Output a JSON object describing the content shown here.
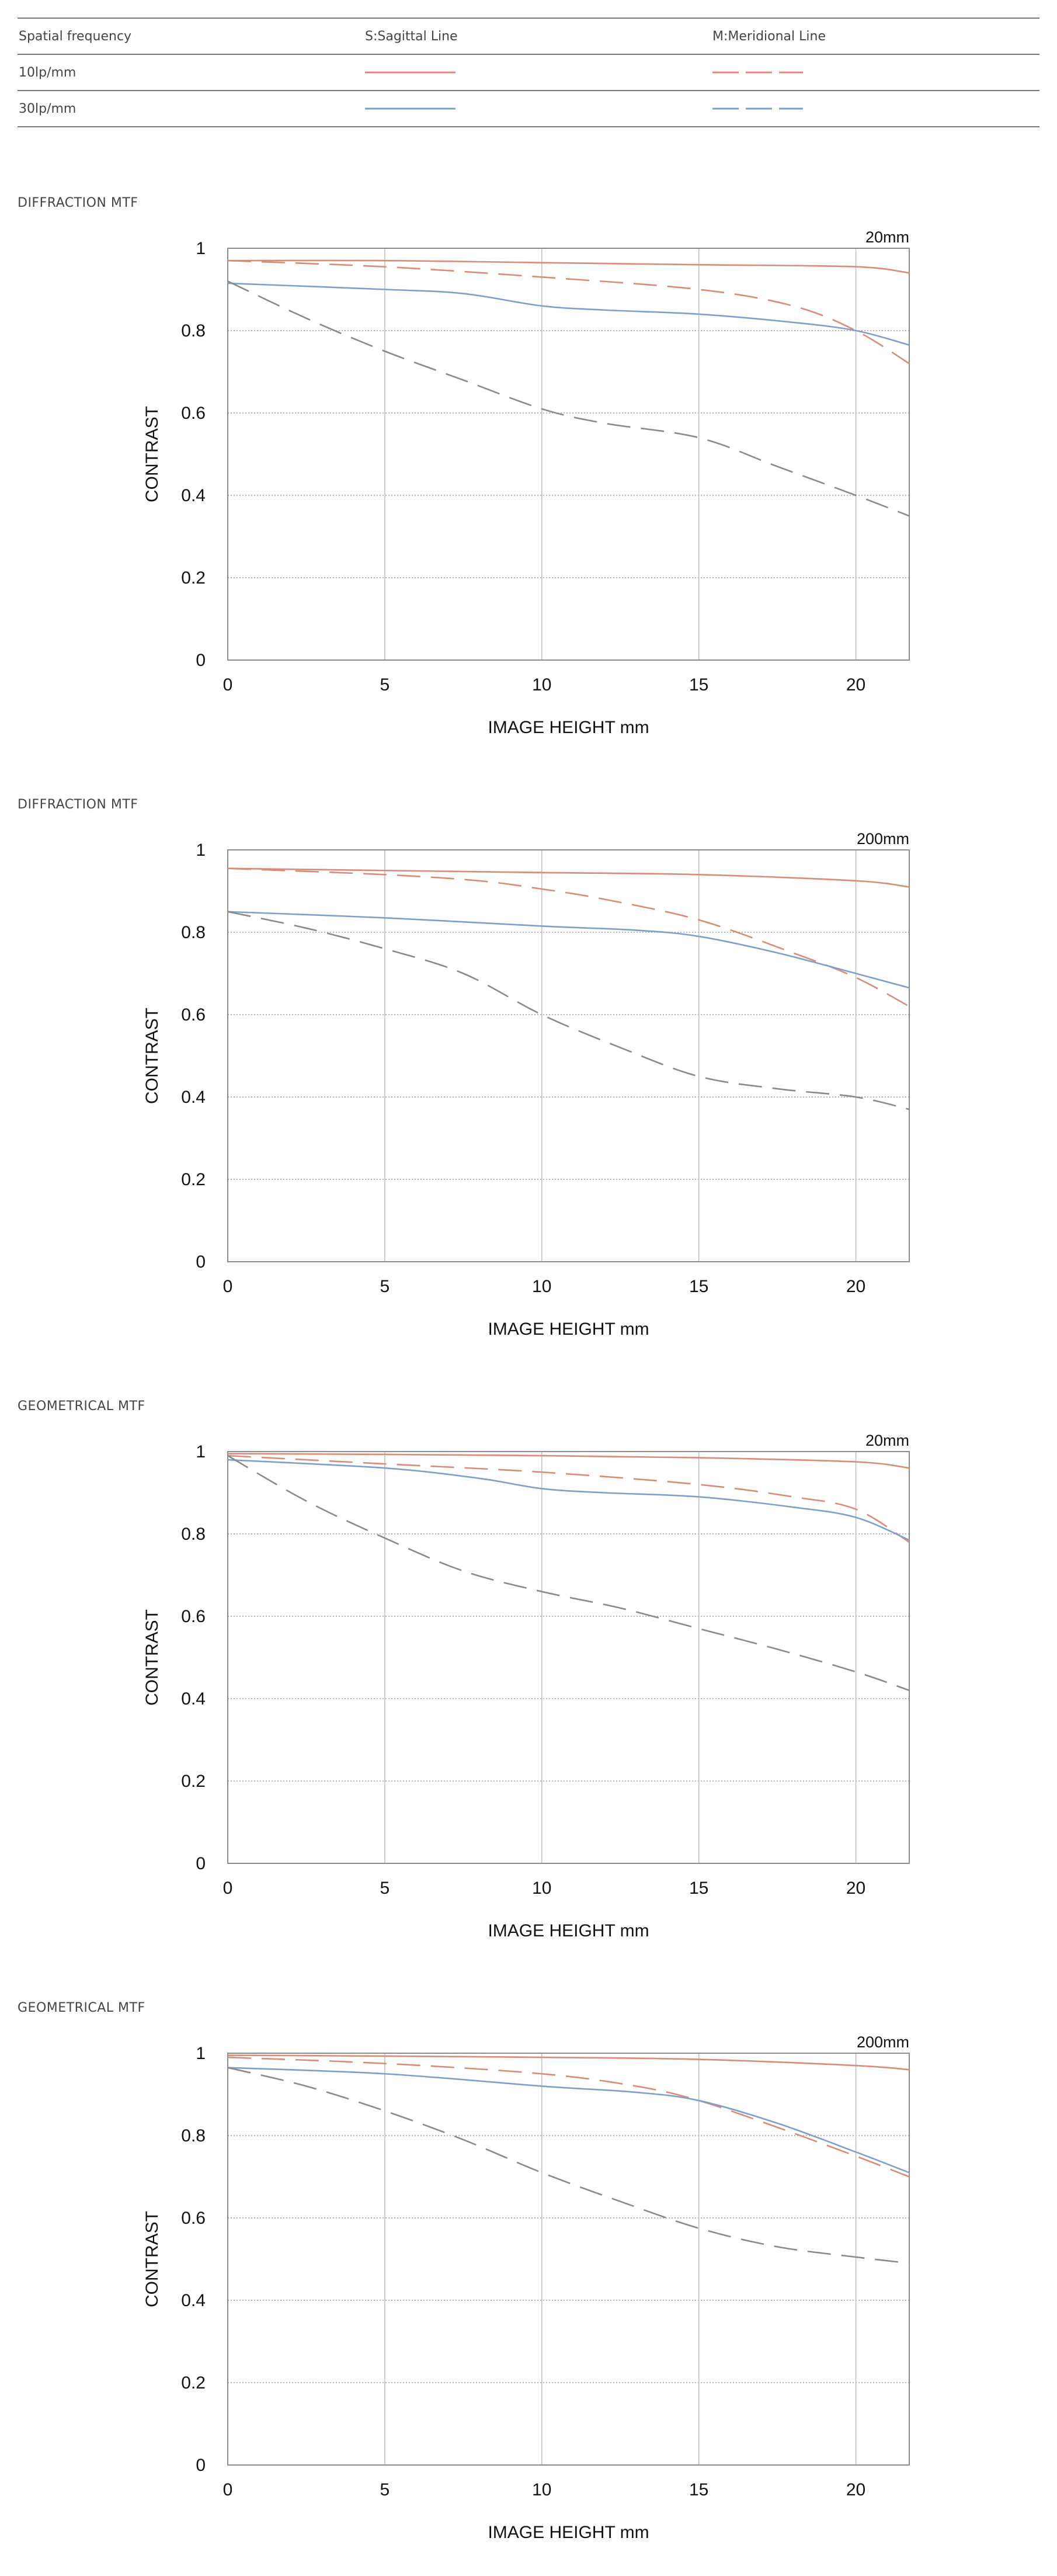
{
  "legend": {
    "header": {
      "col1": "Spatial frequency",
      "col2": "S:Sagittal Line",
      "col3": "M:Meridional Line"
    },
    "rows": [
      {
        "label": "10lp/mm",
        "color": "#d98b76"
      },
      {
        "label": "30lp/mm",
        "color": "#7f9ed0"
      }
    ]
  },
  "chart_data": [
    {
      "type": "line",
      "section_title": "DIFFRACTION MTF",
      "corner_label": "20mm",
      "xlabel": "IMAGE HEIGHT  mm",
      "ylabel": "CONTRAST",
      "xlim": [
        0,
        21.7
      ],
      "ylim": [
        0,
        1
      ],
      "xticks": [
        0,
        5,
        10,
        15,
        20
      ],
      "yticks": [
        0,
        0.2,
        0.4,
        0.6,
        0.8,
        1
      ],
      "grid": true,
      "series": [
        {
          "name": "10lp/mm S",
          "color": "#d98b76",
          "dash": "solid",
          "x": [
            0,
            5,
            10,
            15,
            20,
            21.7
          ],
          "y": [
            0.97,
            0.97,
            0.965,
            0.96,
            0.955,
            0.94
          ]
        },
        {
          "name": "10lp/mm M",
          "color": "#d98b76",
          "dash": "dashed",
          "x": [
            0,
            5,
            10,
            15,
            18,
            20,
            21.7
          ],
          "y": [
            0.97,
            0.955,
            0.93,
            0.9,
            0.86,
            0.8,
            0.72
          ]
        },
        {
          "name": "30lp/mm S",
          "color": "#7f9ed0",
          "dash": "solid",
          "x": [
            0,
            5,
            7.5,
            10,
            12,
            15,
            18,
            20,
            21.7
          ],
          "y": [
            0.915,
            0.9,
            0.89,
            0.86,
            0.85,
            0.84,
            0.82,
            0.8,
            0.765
          ]
        },
        {
          "name": "30lp/mm M",
          "color": "#8a8a8a",
          "dash": "dashed",
          "x": [
            0,
            2.5,
            5,
            7.5,
            10,
            12,
            15,
            17.5,
            20,
            21.7
          ],
          "y": [
            0.92,
            0.83,
            0.75,
            0.68,
            0.61,
            0.575,
            0.54,
            0.47,
            0.4,
            0.35
          ]
        }
      ]
    },
    {
      "type": "line",
      "section_title": "DIFFRACTION MTF",
      "corner_label": "200mm",
      "xlabel": "IMAGE HEIGHT  mm",
      "ylabel": "CONTRAST",
      "xlim": [
        0,
        21.7
      ],
      "ylim": [
        0,
        1
      ],
      "xticks": [
        0,
        5,
        10,
        15,
        20
      ],
      "yticks": [
        0,
        0.2,
        0.4,
        0.6,
        0.8,
        1
      ],
      "grid": true,
      "series": [
        {
          "name": "10lp/mm S",
          "color": "#d98b76",
          "dash": "solid",
          "x": [
            0,
            5,
            10,
            15,
            20,
            21.7
          ],
          "y": [
            0.955,
            0.95,
            0.945,
            0.94,
            0.925,
            0.91
          ]
        },
        {
          "name": "10lp/mm M",
          "color": "#d98b76",
          "dash": "dashed",
          "x": [
            0,
            5,
            8,
            10,
            12,
            15,
            18,
            20,
            21.7
          ],
          "y": [
            0.955,
            0.94,
            0.925,
            0.905,
            0.88,
            0.83,
            0.75,
            0.69,
            0.62
          ]
        },
        {
          "name": "30lp/mm S",
          "color": "#7f9ed0",
          "dash": "solid",
          "x": [
            0,
            5,
            10,
            13,
            15,
            17.5,
            20,
            21.7
          ],
          "y": [
            0.85,
            0.835,
            0.815,
            0.805,
            0.79,
            0.75,
            0.7,
            0.665
          ]
        },
        {
          "name": "30lp/mm M",
          "color": "#8a8a8a",
          "dash": "dashed",
          "x": [
            0,
            2.5,
            5,
            7.5,
            10,
            12.5,
            15,
            17.5,
            20,
            21.7
          ],
          "y": [
            0.85,
            0.81,
            0.76,
            0.7,
            0.6,
            0.52,
            0.45,
            0.42,
            0.4,
            0.37
          ]
        }
      ]
    },
    {
      "type": "line",
      "section_title": "GEOMETRICAL MTF",
      "corner_label": "20mm",
      "xlabel": "IMAGE HEIGHT  mm",
      "ylabel": "CONTRAST",
      "xlim": [
        0,
        21.7
      ],
      "ylim": [
        0,
        1
      ],
      "xticks": [
        0,
        5,
        10,
        15,
        20
      ],
      "yticks": [
        0,
        0.2,
        0.4,
        0.6,
        0.8,
        1
      ],
      "grid": true,
      "series": [
        {
          "name": "10lp/mm S",
          "color": "#d98b76",
          "dash": "solid",
          "x": [
            0,
            5,
            10,
            15,
            20,
            21.7
          ],
          "y": [
            0.995,
            0.993,
            0.99,
            0.985,
            0.975,
            0.96
          ]
        },
        {
          "name": "10lp/mm M",
          "color": "#d98b76",
          "dash": "dashed",
          "x": [
            0,
            5,
            10,
            15,
            18,
            20,
            21.7
          ],
          "y": [
            0.99,
            0.97,
            0.95,
            0.92,
            0.89,
            0.86,
            0.78
          ]
        },
        {
          "name": "30lp/mm S",
          "color": "#7f9ed0",
          "dash": "solid",
          "x": [
            0,
            5,
            8,
            10,
            12,
            15,
            18,
            20,
            21.7
          ],
          "y": [
            0.98,
            0.96,
            0.935,
            0.91,
            0.9,
            0.89,
            0.865,
            0.84,
            0.785
          ]
        },
        {
          "name": "30lp/mm M",
          "color": "#8a8a8a",
          "dash": "dashed",
          "x": [
            0,
            2.5,
            5,
            7.5,
            10,
            12.5,
            15,
            17.5,
            20,
            21.7
          ],
          "y": [
            0.99,
            0.88,
            0.79,
            0.71,
            0.66,
            0.62,
            0.57,
            0.52,
            0.465,
            0.42
          ]
        }
      ]
    },
    {
      "type": "line",
      "section_title": "GEOMETRICAL MTF",
      "corner_label": "200mm",
      "xlabel": "IMAGE HEIGHT  mm",
      "ylabel": "CONTRAST",
      "xlim": [
        0,
        21.7
      ],
      "ylim": [
        0,
        1
      ],
      "xticks": [
        0,
        5,
        10,
        15,
        20
      ],
      "yticks": [
        0,
        0.2,
        0.4,
        0.6,
        0.8,
        1
      ],
      "grid": true,
      "series": [
        {
          "name": "10lp/mm S",
          "color": "#d98b76",
          "dash": "solid",
          "x": [
            0,
            5,
            10,
            15,
            20,
            21.7
          ],
          "y": [
            0.995,
            0.993,
            0.99,
            0.985,
            0.97,
            0.96
          ]
        },
        {
          "name": "10lp/mm M",
          "color": "#d98b76",
          "dash": "dashed",
          "x": [
            0,
            5,
            10,
            13,
            15,
            17.5,
            20,
            21.7
          ],
          "y": [
            0.99,
            0.975,
            0.95,
            0.92,
            0.885,
            0.82,
            0.75,
            0.7
          ]
        },
        {
          "name": "30lp/mm S",
          "color": "#7f9ed0",
          "dash": "solid",
          "x": [
            0,
            5,
            10,
            13,
            15,
            17.5,
            20,
            21.7
          ],
          "y": [
            0.965,
            0.95,
            0.92,
            0.905,
            0.885,
            0.83,
            0.76,
            0.71
          ]
        },
        {
          "name": "30lp/mm M",
          "color": "#8a8a8a",
          "dash": "dashed",
          "x": [
            0,
            2.5,
            5,
            7.5,
            10,
            12.5,
            15,
            17.5,
            20,
            21.7
          ],
          "y": [
            0.965,
            0.92,
            0.86,
            0.79,
            0.71,
            0.64,
            0.575,
            0.53,
            0.505,
            0.49
          ]
        }
      ]
    }
  ]
}
